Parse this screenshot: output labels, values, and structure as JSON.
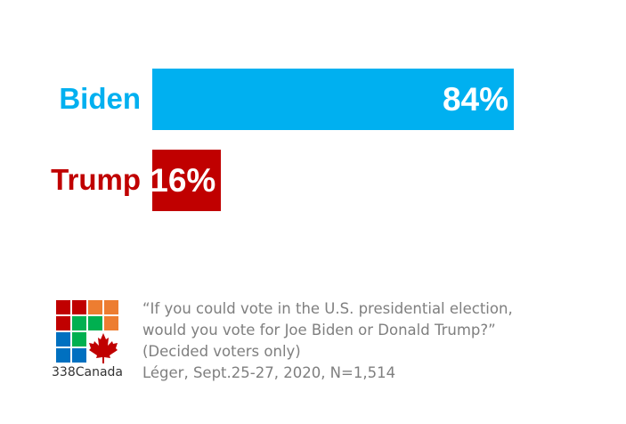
{
  "chart_data": {
    "type": "bar",
    "orientation": "horizontal",
    "categories": [
      "Biden",
      "Trump"
    ],
    "values": [
      84,
      16
    ],
    "value_labels": [
      "84%",
      "16%"
    ],
    "colors": [
      "#00b0f0",
      "#c00000"
    ],
    "xlim": [
      0,
      100
    ]
  },
  "footer": {
    "brand": "338Canada",
    "question": [
      "“If you could vote in the U.S. presidential election,",
      "would you vote for Joe Biden or Donald Trump?”",
      "(Decided voters only)"
    ],
    "source": "Léger, Sept.25-27, 2020, N=1,514"
  }
}
